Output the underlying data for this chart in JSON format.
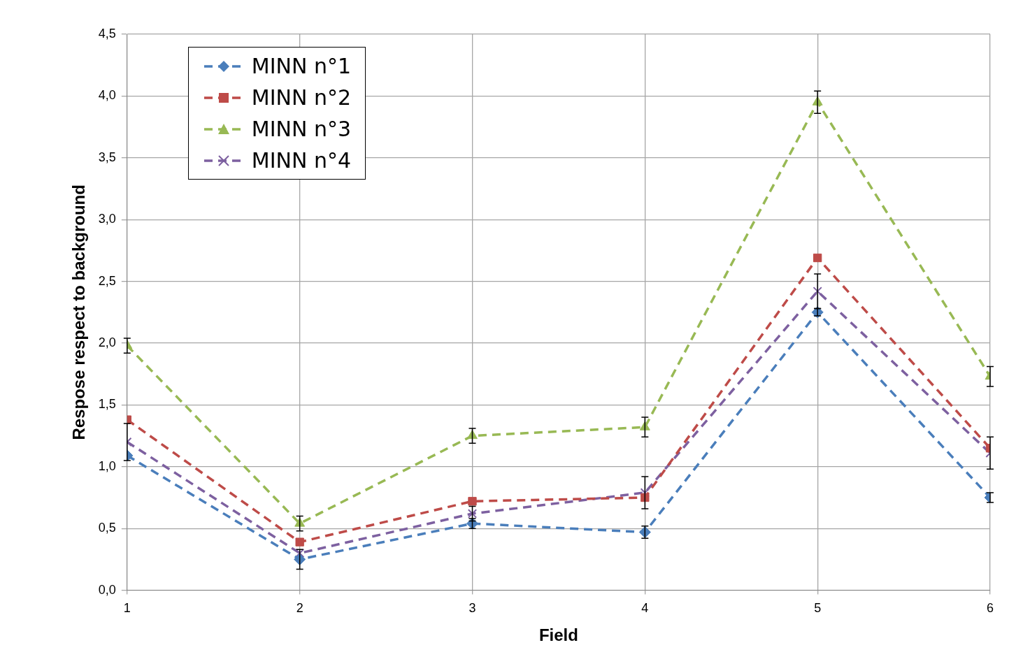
{
  "chart_data": {
    "type": "line",
    "xlabel": "Field",
    "ylabel": "Respose respect to background",
    "x": [
      1,
      2,
      3,
      4,
      5,
      6
    ],
    "xlim": [
      1,
      6
    ],
    "xticks": [
      1,
      2,
      3,
      4,
      5,
      6
    ],
    "ylim": [
      0,
      4.5
    ],
    "yticks": [
      {
        "value": 0,
        "label": "0,0"
      },
      {
        "value": 0.5,
        "label": "0,5"
      },
      {
        "value": 1,
        "label": "1,0"
      },
      {
        "value": 1.5,
        "label": "1,5"
      },
      {
        "value": 2,
        "label": "2,0"
      },
      {
        "value": 2.5,
        "label": "2,5"
      },
      {
        "value": 3,
        "label": "3,0"
      },
      {
        "value": 3.5,
        "label": "3,5"
      },
      {
        "value": 4,
        "label": "4,0"
      },
      {
        "value": 4.5,
        "label": "4,5"
      }
    ],
    "grid": true,
    "legend": "top left",
    "line_style": "dashed",
    "series": [
      {
        "name": "MINN n°1",
        "color": "#4a7ebb",
        "marker": "diamond",
        "values": [
          1.09,
          0.25,
          0.54,
          0.47,
          2.25,
          0.75
        ],
        "errors": [
          null,
          0.08,
          0.04,
          0.05,
          0.03,
          0.04
        ]
      },
      {
        "name": "MINN n°2",
        "color": "#be4b48",
        "marker": "square",
        "values": [
          1.38,
          0.39,
          0.72,
          0.75,
          2.69,
          1.15
        ],
        "errors": [
          null,
          null,
          null,
          null,
          null,
          null
        ]
      },
      {
        "name": "MINN n°3",
        "color": "#98b954",
        "marker": "triangle",
        "values": [
          1.98,
          0.54,
          1.25,
          1.32,
          3.95,
          1.73
        ],
        "errors": [
          0.06,
          0.06,
          0.06,
          0.08,
          0.09,
          0.08
        ]
      },
      {
        "name": "MINN n°4",
        "color": "#7d60a0",
        "marker": "cross",
        "values": [
          1.2,
          0.3,
          0.62,
          0.79,
          2.42,
          1.11
        ],
        "errors": [
          0.15,
          null,
          0.06,
          0.13,
          0.14,
          0.13
        ]
      }
    ]
  }
}
